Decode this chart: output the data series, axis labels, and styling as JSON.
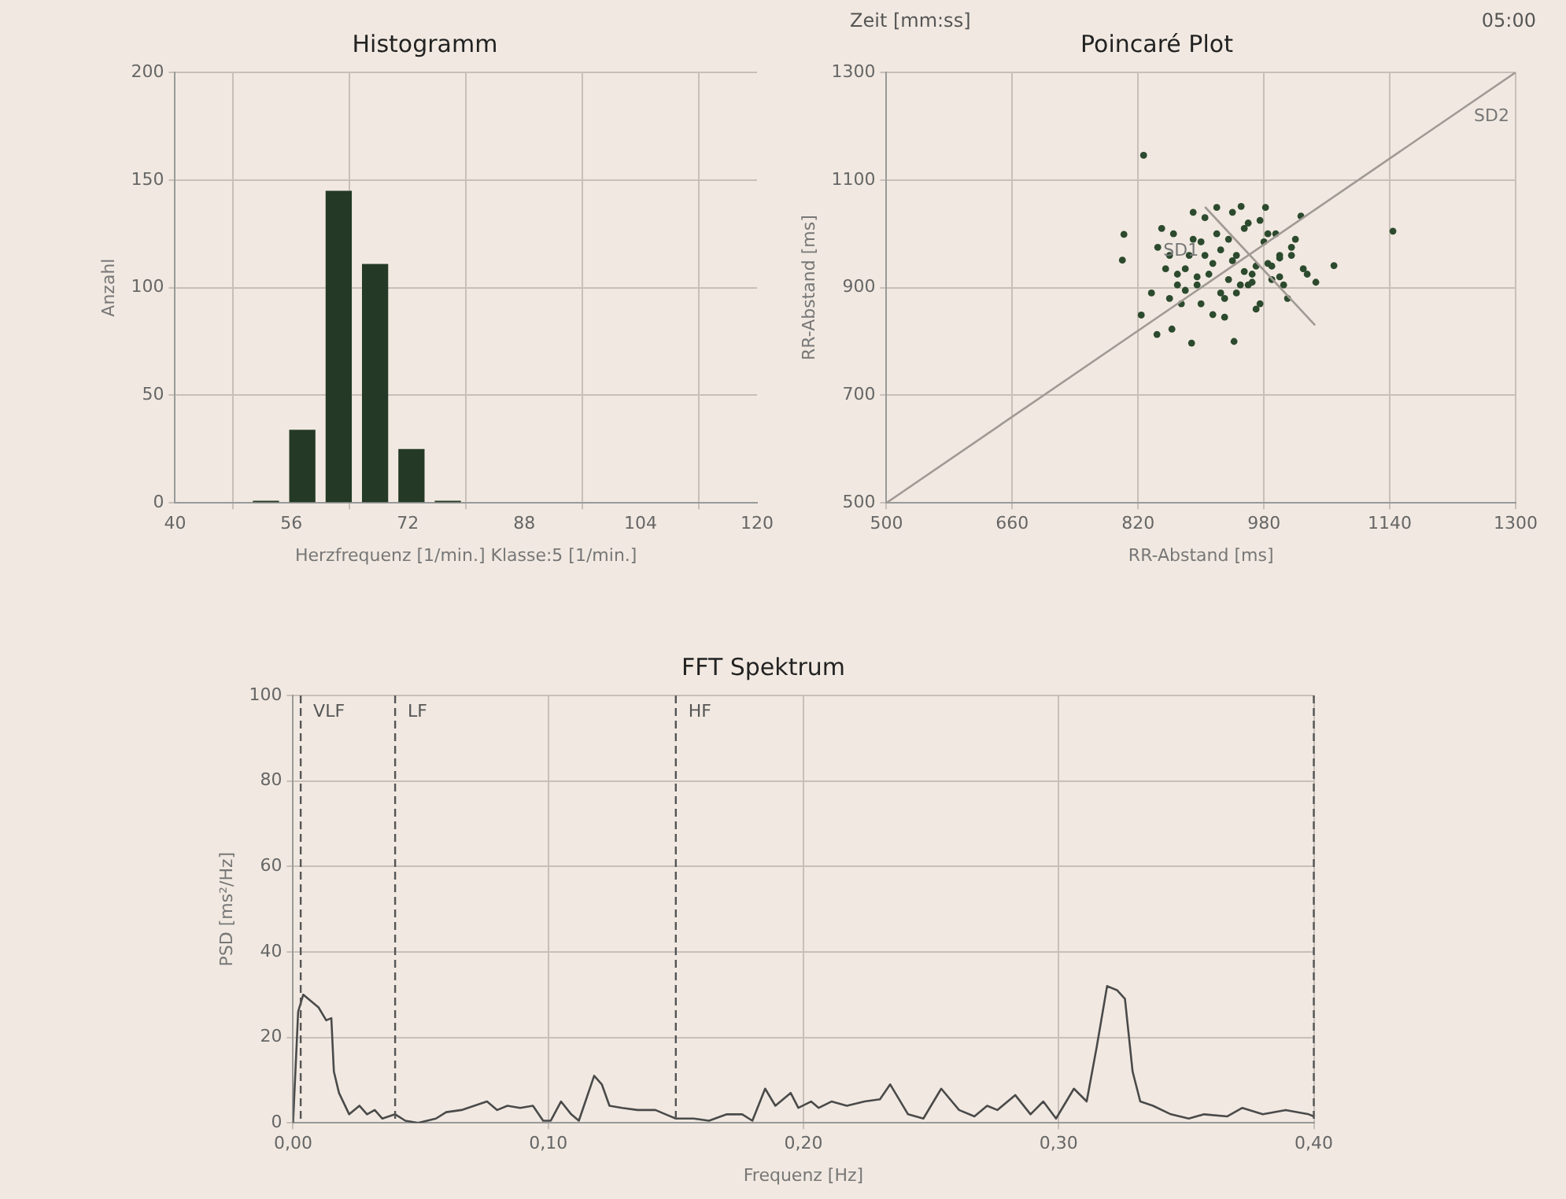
{
  "chart_data": [
    {
      "type": "histogram",
      "title": "Histogramm",
      "xlabel": "Herzfrequenz [1/min.] Klasse:5 [1/min.]",
      "ylabel": "Anzahl",
      "bins": [
        50,
        55,
        60,
        65,
        70,
        75,
        80
      ],
      "values": [
        1,
        34,
        145,
        111,
        25,
        1
      ],
      "color": "#243a26",
      "xlim": [
        40,
        120
      ],
      "xticks": [
        40,
        56,
        72,
        88,
        104,
        120
      ],
      "ylim": [
        0,
        200
      ],
      "yticks": [
        0,
        50,
        100,
        150,
        200
      ],
      "grid": true
    },
    {
      "type": "scatter",
      "title": "Poincaré Plot",
      "xlabel": "RR-Abstand [ms]",
      "ylabel": "RR-Abstand [ms]",
      "xlim": [
        500,
        1300
      ],
      "xticks": [
        500,
        660,
        820,
        980,
        1140,
        1300
      ],
      "ylim": [
        500,
        1300
      ],
      "yticks": [
        500,
        700,
        900,
        1100,
        1300
      ],
      "grid": true,
      "annotations": [
        "Zeit [mm:ss]",
        "05:00"
      ],
      "series": [
        {
          "type": "line",
          "name": "SD2",
          "color": "#a09a94",
          "marker": "none",
          "x": [
            500,
            1300
          ],
          "values": [
            500,
            1300
          ]
        },
        {
          "type": "line",
          "name": "SD1",
          "color": "#a09a94",
          "marker": "none",
          "x": [
            905,
            1045
          ],
          "values": [
            1050,
            830
          ]
        },
        {
          "type": "scatter",
          "color": "#2c4a2e",
          "marker": "circle",
          "x": [
            827,
            1144,
            802,
            800,
            824,
            844,
            888,
            942,
            863,
            837,
            1046,
            1069,
            1027,
            982,
            951,
            920,
            850,
            860,
            870,
            880,
            890,
            900,
            910,
            920,
            930,
            940,
            950,
            960,
            970,
            980,
            990,
            1000,
            1010,
            1020,
            1030,
            855,
            865,
            875,
            885,
            895,
            905,
            915,
            925,
            935,
            945,
            955,
            965,
            975,
            985,
            995,
            1005,
            1015,
            845,
            870,
            890,
            905,
            925,
            940,
            955,
            970,
            985,
            1000,
            1015,
            880,
            900,
            915,
            930,
            945,
            960,
            975,
            990,
            860,
            895,
            935,
            965,
            1000,
            1035
          ],
          "values": [
            1146,
            1005,
            999,
            951,
            849,
            813,
            797,
            800,
            823,
            890,
            910,
            941,
            1033,
            1049,
            1051,
            1049,
            1010,
            960,
            905,
            935,
            990,
            870,
            925,
            1000,
            880,
            950,
            905,
            1020,
            940,
            985,
            915,
            960,
            880,
            990,
            935,
            935,
            1000,
            870,
            960,
            905,
            1030,
            850,
            970,
            915,
            890,
            1010,
            925,
            870,
            945,
            1000,
            905,
            960,
            975,
            925,
            1040,
            960,
            890,
            1040,
            930,
            860,
            1000,
            920,
            975,
            895,
            985,
            945,
            845,
            960,
            905,
            1025,
            940,
            880,
            920,
            990,
            910,
            955,
            925
          ]
        }
      ]
    },
    {
      "type": "line",
      "title": "FFT Spektrum",
      "xlabel": "Frequenz [Hz]",
      "ylabel": "PSD [ms²/Hz]",
      "color": "#4a4a4a",
      "marker": "none",
      "grid": true,
      "xlim": [
        0,
        0.4
      ],
      "xticks": [
        {
          "value": 0,
          "label": "0,00"
        },
        {
          "value": 0.1,
          "label": "0,10"
        },
        {
          "value": 0.2,
          "label": "0,20"
        },
        {
          "value": 0.3,
          "label": "0,30"
        },
        {
          "value": 0.4,
          "label": "0,40"
        }
      ],
      "ylim": [
        0,
        100
      ],
      "yticks": [
        0,
        20,
        40,
        60,
        80,
        100
      ],
      "ref_lines": [
        {
          "axis": "x",
          "value": 0.003,
          "line_style": "dashed",
          "color": "#555555",
          "label": "VLF"
        },
        {
          "axis": "x",
          "value": 0.04,
          "line_style": "dashed",
          "color": "#555555",
          "label": "LF"
        },
        {
          "axis": "x",
          "value": 0.15,
          "line_style": "dashed",
          "color": "#555555",
          "label": "HF"
        },
        {
          "axis": "x",
          "value": 0.4,
          "line_style": "dashed",
          "color": "#555555"
        }
      ],
      "x": [
        0,
        0.002,
        0.004,
        0.01,
        0.013,
        0.015,
        0.016,
        0.018,
        0.022,
        0.026,
        0.029,
        0.032,
        0.035,
        0.04,
        0.044,
        0.049,
        0.056,
        0.06,
        0.066,
        0.071,
        0.076,
        0.08,
        0.084,
        0.089,
        0.094,
        0.098,
        0.101,
        0.105,
        0.109,
        0.112,
        0.118,
        0.121,
        0.124,
        0.129,
        0.135,
        0.142,
        0.146,
        0.15,
        0.157,
        0.163,
        0.17,
        0.176,
        0.18,
        0.185,
        0.189,
        0.195,
        0.198,
        0.203,
        0.206,
        0.211,
        0.217,
        0.224,
        0.23,
        0.234,
        0.241,
        0.247,
        0.254,
        0.261,
        0.267,
        0.272,
        0.276,
        0.283,
        0.289,
        0.294,
        0.299,
        0.306,
        0.311,
        0.315,
        0.319,
        0.323,
        0.326,
        0.329,
        0.332,
        0.337,
        0.344,
        0.351,
        0.357,
        0.366,
        0.372,
        0.38,
        0.389,
        0.398,
        0.4
      ],
      "values": [
        0,
        26,
        30,
        27,
        24,
        24.5,
        12,
        7,
        2,
        4,
        2,
        3,
        1,
        2,
        0.5,
        0,
        1,
        2.5,
        3,
        4,
        5,
        3,
        4,
        3.5,
        4,
        0.5,
        0.5,
        5,
        2,
        0.5,
        11,
        9,
        4,
        3.5,
        3,
        3,
        2,
        1,
        1,
        0.5,
        2,
        2,
        0.5,
        8,
        4,
        7,
        3.5,
        5,
        3.5,
        5,
        4,
        5,
        5.5,
        9,
        2,
        1,
        8,
        3,
        1.5,
        4,
        3,
        6.5,
        2,
        5,
        1,
        8,
        5,
        18,
        32,
        31,
        29,
        12,
        5,
        4,
        2,
        1,
        2,
        1.5,
        3.5,
        2,
        3,
        2,
        1.5
      ]
    }
  ]
}
